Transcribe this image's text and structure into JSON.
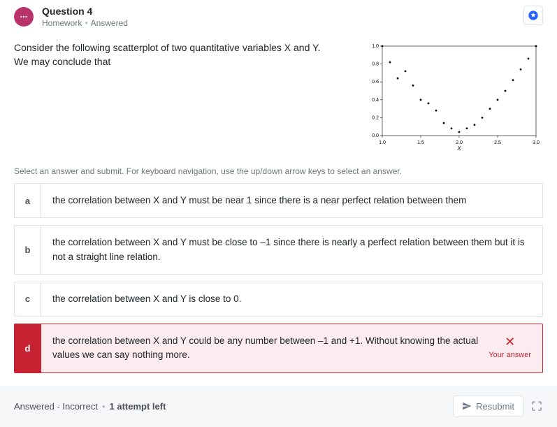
{
  "header": {
    "question_label": "Question 4",
    "category": "Homework",
    "status": "Answered"
  },
  "prompt": "Consider the following scatterplot of two quantitative variables X and Y.\nWe may conclude that",
  "scatter": {
    "type": "scatter",
    "xlim": [
      1.0,
      3.0
    ],
    "ylim": [
      0.0,
      1.0
    ],
    "xticks": [
      1.0,
      1.5,
      2.0,
      2.5,
      3.0
    ],
    "yticks": [
      0.0,
      0.2,
      0.4,
      0.6,
      0.8,
      1.0
    ],
    "xlabel": "X",
    "ylabel": "",
    "point_color": "#000000",
    "point_radius": 1.4,
    "axis_color": "#000000",
    "tick_fontsize": 7,
    "label_fontsize": 8,
    "background": "#ffffff",
    "points": [
      [
        1.0,
        1.0
      ],
      [
        1.1,
        0.82
      ],
      [
        1.2,
        0.64
      ],
      [
        1.3,
        0.72
      ],
      [
        1.4,
        0.56
      ],
      [
        1.5,
        0.4
      ],
      [
        1.6,
        0.36
      ],
      [
        1.7,
        0.28
      ],
      [
        1.8,
        0.14
      ],
      [
        1.9,
        0.08
      ],
      [
        2.0,
        0.04
      ],
      [
        2.1,
        0.08
      ],
      [
        2.2,
        0.12
      ],
      [
        2.3,
        0.2
      ],
      [
        2.4,
        0.3
      ],
      [
        2.5,
        0.4
      ],
      [
        2.6,
        0.5
      ],
      [
        2.7,
        0.62
      ],
      [
        2.8,
        0.74
      ],
      [
        2.9,
        0.86
      ],
      [
        3.0,
        1.0
      ]
    ]
  },
  "hint": "Select an answer and submit. For keyboard navigation, use the up/down arrow keys to select an answer.",
  "options": {
    "a": "the correlation between X and Y must be near 1 since there is a near perfect relation between them",
    "b": "the correlation between X and Y must be close to –1 since there is nearly a perfect relation between them but it is not a straight line relation.",
    "c": "the correlation between X and Y is close to 0.",
    "d": "the correlation between X and Y could be any number between –1 and +1. Without knowing the actual values we can say nothing more."
  },
  "selected_wrong": "d",
  "your_answer_label": "Your answer",
  "footer": {
    "status": "Answered - Incorrect",
    "attempts": "1 attempt left",
    "resubmit": "Resubmit"
  }
}
